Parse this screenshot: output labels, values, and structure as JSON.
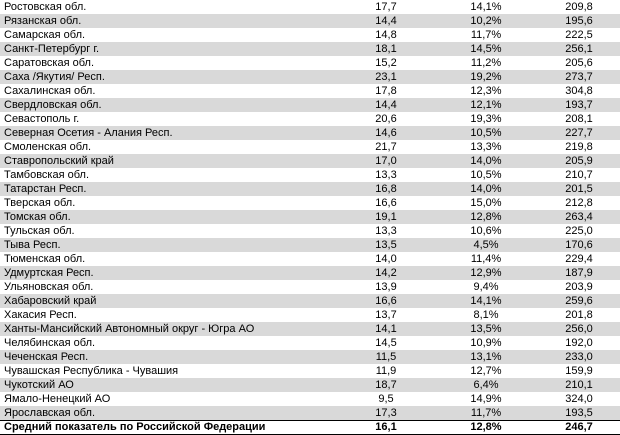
{
  "table": {
    "colors": {
      "band_gray": "#d9d9d9",
      "border_black": "#000000",
      "text_black": "#000000",
      "background_white": "#ffffff"
    },
    "rows": [
      {
        "region": "Ростовская обл.",
        "values": [
          "17,7",
          "14,1%",
          "209,8"
        ]
      },
      {
        "region": "Рязанская обл.",
        "values": [
          "14,4",
          "10,2%",
          "195,6"
        ]
      },
      {
        "region": "Самарская обл.",
        "values": [
          "14,8",
          "11,7%",
          "222,5"
        ]
      },
      {
        "region": "Санкт-Петербург г.",
        "values": [
          "18,1",
          "14,5%",
          "256,1"
        ]
      },
      {
        "region": "Саратовская обл.",
        "values": [
          "15,2",
          "11,2%",
          "205,6"
        ]
      },
      {
        "region": "Саха /Якутия/ Респ.",
        "values": [
          "23,1",
          "19,2%",
          "273,7"
        ]
      },
      {
        "region": "Сахалинская обл.",
        "values": [
          "17,8",
          "12,3%",
          "304,8"
        ]
      },
      {
        "region": "Свердловская обл.",
        "values": [
          "14,4",
          "12,1%",
          "193,7"
        ]
      },
      {
        "region": "Севастополь г.",
        "values": [
          "20,6",
          "19,3%",
          "208,1"
        ]
      },
      {
        "region": "Северная Осетия - Алания Респ.",
        "values": [
          "14,6",
          "10,5%",
          "227,7"
        ]
      },
      {
        "region": "Смоленская обл.",
        "values": [
          "21,7",
          "13,3%",
          "219,8"
        ]
      },
      {
        "region": "Ставропольский край",
        "values": [
          "17,0",
          "14,0%",
          "205,9"
        ]
      },
      {
        "region": "Тамбовская обл.",
        "values": [
          "13,3",
          "10,5%",
          "210,7"
        ]
      },
      {
        "region": "Татарстан Респ.",
        "values": [
          "16,8",
          "14,0%",
          "201,5"
        ]
      },
      {
        "region": "Тверская обл.",
        "values": [
          "16,6",
          "15,0%",
          "212,8"
        ]
      },
      {
        "region": "Томская обл.",
        "values": [
          "19,1",
          "12,8%",
          "263,4"
        ]
      },
      {
        "region": "Тульская обл.",
        "values": [
          "13,3",
          "10,6%",
          "225,0"
        ]
      },
      {
        "region": "Тыва Респ.",
        "values": [
          "13,5",
          "4,5%",
          "170,6"
        ]
      },
      {
        "region": "Тюменская обл.",
        "values": [
          "14,0",
          "11,4%",
          "229,4"
        ]
      },
      {
        "region": "Удмуртская Респ.",
        "values": [
          "14,2",
          "12,9%",
          "187,9"
        ]
      },
      {
        "region": "Ульяновская обл.",
        "values": [
          "13,9",
          "9,4%",
          "203,9"
        ]
      },
      {
        "region": "Хабаровский край",
        "values": [
          "16,6",
          "14,1%",
          "259,6"
        ]
      },
      {
        "region": "Хакасия Респ.",
        "values": [
          "13,7",
          "8,1%",
          "201,8"
        ]
      },
      {
        "region": "Ханты-Мансийский Автономный округ - Югра АО",
        "values": [
          "14,1",
          "13,5%",
          "256,0"
        ]
      },
      {
        "region": "Челябинская обл.",
        "values": [
          "14,5",
          "10,9%",
          "192,0"
        ]
      },
      {
        "region": "Чеченская Респ.",
        "values": [
          "11,5",
          "13,1%",
          "233,0"
        ]
      },
      {
        "region": "Чувашская Республика - Чувашия",
        "values": [
          "11,9",
          "12,7%",
          "159,9"
        ]
      },
      {
        "region": "Чукотский АО",
        "values": [
          "18,7",
          "6,4%",
          "210,1"
        ]
      },
      {
        "region": "Ямало-Ненецкий АО",
        "values": [
          "9,5",
          "14,9%",
          "324,0"
        ]
      },
      {
        "region": "Ярославская обл.",
        "values": [
          "17,3",
          "11,7%",
          "193,5"
        ]
      },
      {
        "region": "Средний показатель по Российской Федерации",
        "values": [
          "16,1",
          "12,8%",
          "246,7"
        ],
        "bold": true,
        "summary": true
      }
    ]
  }
}
